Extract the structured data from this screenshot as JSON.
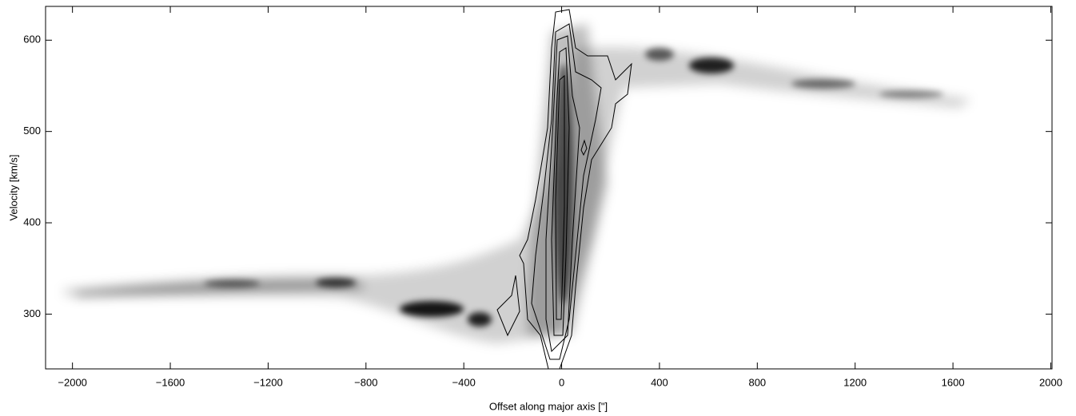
{
  "chart_data": {
    "type": "image",
    "x_label": "Offset along major axis [\"]",
    "y_label": "Velocity [km/s]",
    "xlim": [
      -2110,
      2005
    ],
    "ylim": [
      240,
      637
    ],
    "xticks": [
      {
        "value": -2000,
        "label": "−2000"
      },
      {
        "value": -1600,
        "label": "−1600"
      },
      {
        "value": -1200,
        "label": "−1200"
      },
      {
        "value": -800,
        "label": "−800"
      },
      {
        "value": -400,
        "label": "−400"
      },
      0,
      400,
      800,
      1200,
      1600,
      2000
    ],
    "yticks": [
      300,
      400,
      500,
      600
    ]
  }
}
